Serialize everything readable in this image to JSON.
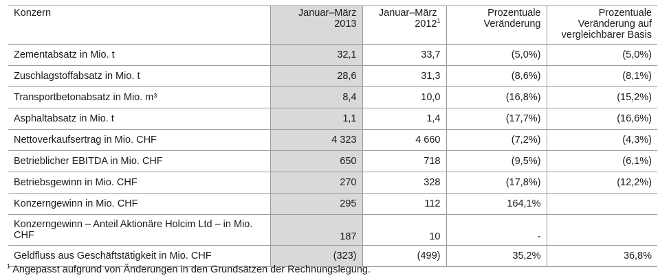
{
  "table": {
    "headers": {
      "label": "Konzern",
      "col_2013": "Januar–März 2013",
      "col_2012": "Januar–März 2012",
      "col_2012_footnote_marker": "1",
      "col_change": "Prozentuale Veränderung",
      "col_change_comparable": "Prozentuale Veränderung auf vergleichbarer Basis"
    },
    "rows": [
      {
        "label": "Zementabsatz in Mio. t",
        "v2013": "32,1",
        "v2012": "33,7",
        "change": "(5,0%)",
        "change_comparable": "(5,0%)"
      },
      {
        "label": "Zuschlagstoffabsatz in Mio. t",
        "v2013": "28,6",
        "v2012": "31,3",
        "change": "(8,6%)",
        "change_comparable": "(8,1%)"
      },
      {
        "label": "Transportbetonabsatz in Mio. m³",
        "v2013": "8,4",
        "v2012": "10,0",
        "change": "(16,8%)",
        "change_comparable": "(15,2%)"
      },
      {
        "label": "Asphaltabsatz in Mio. t",
        "v2013": "1,1",
        "v2012": "1,4",
        "change": "(17,7%)",
        "change_comparable": "(16,6%)"
      },
      {
        "label": "Nettoverkaufsertrag in Mio. CHF",
        "v2013": "4 323",
        "v2012": "4 660",
        "change": "(7,2%)",
        "change_comparable": "(4,3%)"
      },
      {
        "label": "Betrieblicher EBITDA in Mio. CHF",
        "v2013": "650",
        "v2012": "718",
        "change": "(9,5%)",
        "change_comparable": "(6,1%)"
      },
      {
        "label": "Betriebsgewinn in Mio. CHF",
        "v2013": "270",
        "v2012": "328",
        "change": "(17,8%)",
        "change_comparable": "(12,2%)"
      },
      {
        "label": "Konzerngewinn in Mio. CHF",
        "v2013": "295",
        "v2012": "112",
        "change": "164,1%",
        "change_comparable": ""
      },
      {
        "label": "Konzerngewinn – Anteil Aktionäre Holcim Ltd – in Mio. CHF",
        "v2013": "187",
        "v2012": "10",
        "change": "-",
        "change_comparable": ""
      },
      {
        "label": "Geldfluss aus Geschäftstätigkeit in Mio. CHF",
        "v2013": "(323)",
        "v2012": "(499)",
        "change": "35,2%",
        "change_comparable": "36,8%"
      }
    ]
  },
  "footnote": {
    "marker": "1",
    "text": "Angepasst aufgrund von Änderungen in den Grundsätzen der Rechnungslegung."
  },
  "colors": {
    "highlight_column": "#d9d9d9",
    "rule": "#9a9a9a"
  }
}
